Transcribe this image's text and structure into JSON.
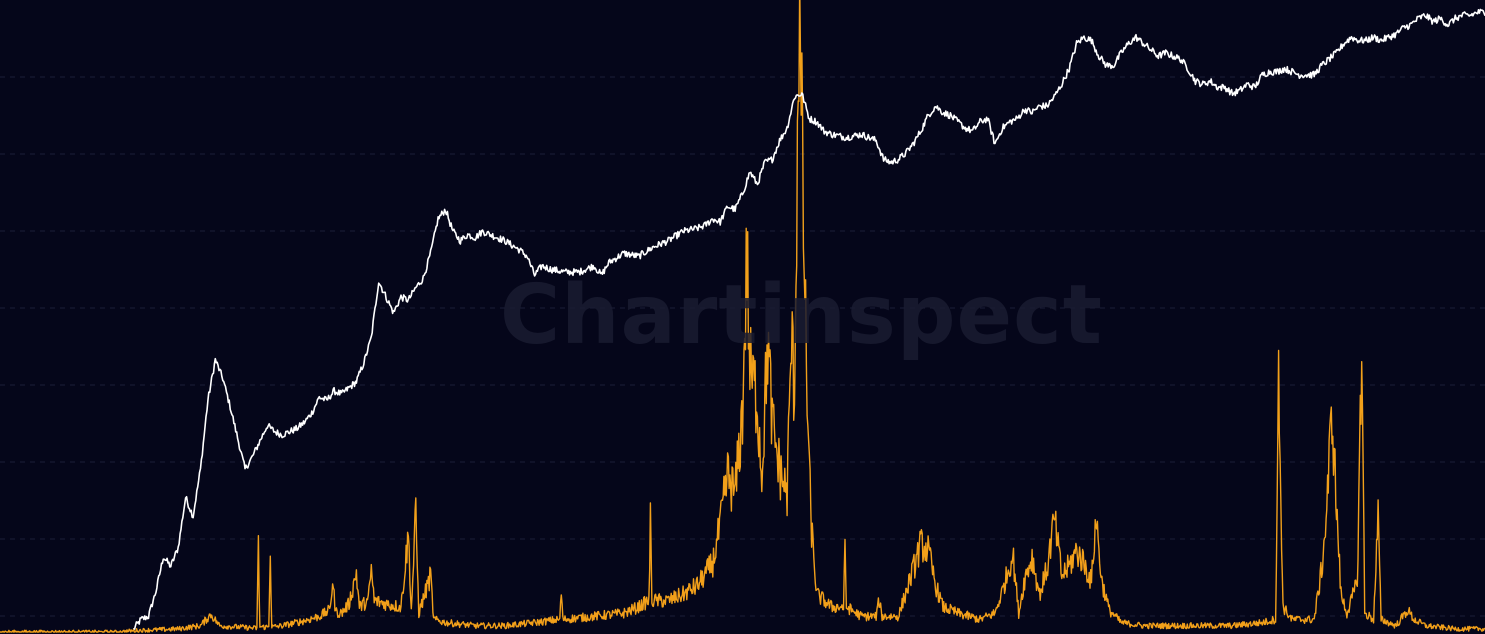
{
  "watermark": "Chartinspect",
  "colors": {
    "background": "#05061a",
    "grid": "#1c1f38",
    "price": "#ffffff",
    "volume": "#f2a01a"
  },
  "chart_data": {
    "type": "line",
    "grid": true,
    "gridlines": "horizontal-dashed",
    "x_range": [
      0,
      100
    ],
    "y_range": [
      0,
      100
    ],
    "series": [
      {
        "key": "price",
        "style": "line",
        "points": [
          [
            9.0,
            0.5
          ],
          [
            9.5,
            2.0
          ],
          [
            10.0,
            2.5
          ],
          [
            10.5,
            6.5
          ],
          [
            11.0,
            12.0
          ],
          [
            11.5,
            10.5
          ],
          [
            12.0,
            13.5
          ],
          [
            12.5,
            21.5
          ],
          [
            13.0,
            18.5
          ],
          [
            13.5,
            26.0
          ],
          [
            14.0,
            37.0
          ],
          [
            14.5,
            43.5
          ],
          [
            15.0,
            40.5
          ],
          [
            15.5,
            36.0
          ],
          [
            16.0,
            31.0
          ],
          [
            16.5,
            26.0
          ],
          [
            17.0,
            28.0
          ],
          [
            17.5,
            30.5
          ],
          [
            18.0,
            33.0
          ],
          [
            18.5,
            32.0
          ],
          [
            19.0,
            31.5
          ],
          [
            19.5,
            32.0
          ],
          [
            20.0,
            32.5
          ],
          [
            20.5,
            33.5
          ],
          [
            21.0,
            35.0
          ],
          [
            21.5,
            37.5
          ],
          [
            22.0,
            37.0
          ],
          [
            22.5,
            38.5
          ],
          [
            23.0,
            38.0
          ],
          [
            23.5,
            39.0
          ],
          [
            24.0,
            40.0
          ],
          [
            24.5,
            43.0
          ],
          [
            25.0,
            47.0
          ],
          [
            25.5,
            56.0
          ],
          [
            26.0,
            53.5
          ],
          [
            26.5,
            51.0
          ],
          [
            27.0,
            53.5
          ],
          [
            27.5,
            53.0
          ],
          [
            28.0,
            55.0
          ],
          [
            28.5,
            56.5
          ],
          [
            29.0,
            60.5
          ],
          [
            29.5,
            66.0
          ],
          [
            30.0,
            67.5
          ],
          [
            30.5,
            64.0
          ],
          [
            31.0,
            62.5
          ],
          [
            31.5,
            63.5
          ],
          [
            32.0,
            63.0
          ],
          [
            32.5,
            64.0
          ],
          [
            33.0,
            63.5
          ],
          [
            34.0,
            62.5
          ],
          [
            35.0,
            61.0
          ],
          [
            35.5,
            60.0
          ],
          [
            36.0,
            57.0
          ],
          [
            36.5,
            58.5
          ],
          [
            37.0,
            58.0
          ],
          [
            38.0,
            57.5
          ],
          [
            39.0,
            57.5
          ],
          [
            40.0,
            58.5
          ],
          [
            40.5,
            57.0
          ],
          [
            41.0,
            59.0
          ],
          [
            42.0,
            60.5
          ],
          [
            43.0,
            60.0
          ],
          [
            44.0,
            61.5
          ],
          [
            45.0,
            62.5
          ],
          [
            46.0,
            64.0
          ],
          [
            47.0,
            64.5
          ],
          [
            47.5,
            65.0
          ],
          [
            48.0,
            66.0
          ],
          [
            48.5,
            65.5
          ],
          [
            49.0,
            68.0
          ],
          [
            49.5,
            67.5
          ],
          [
            50.0,
            70.0
          ],
          [
            50.5,
            73.5
          ],
          [
            51.0,
            71.5
          ],
          [
            51.5,
            75.0
          ],
          [
            52.0,
            75.5
          ],
          [
            52.5,
            78.5
          ],
          [
            53.0,
            80.5
          ],
          [
            53.5,
            85.5
          ],
          [
            54.0,
            86.0
          ],
          [
            54.5,
            82.0
          ],
          [
            55.0,
            81.5
          ],
          [
            55.5,
            80.0
          ],
          [
            56.0,
            79.5
          ],
          [
            57.0,
            79.0
          ],
          [
            58.0,
            79.5
          ],
          [
            59.0,
            78.5
          ],
          [
            59.5,
            75.5
          ],
          [
            60.0,
            75.0
          ],
          [
            60.5,
            75.5
          ],
          [
            61.0,
            76.5
          ],
          [
            61.5,
            78.0
          ],
          [
            62.0,
            80.0
          ],
          [
            62.5,
            82.5
          ],
          [
            63.0,
            84.0
          ],
          [
            63.5,
            83.0
          ],
          [
            64.0,
            82.5
          ],
          [
            64.5,
            81.5
          ],
          [
            65.0,
            80.5
          ],
          [
            65.5,
            80.0
          ],
          [
            66.0,
            81.5
          ],
          [
            66.5,
            82.0
          ],
          [
            67.0,
            78.0
          ],
          [
            67.5,
            80.5
          ],
          [
            68.0,
            81.5
          ],
          [
            68.5,
            82.0
          ],
          [
            69.0,
            83.5
          ],
          [
            69.5,
            83.0
          ],
          [
            70.0,
            84.0
          ],
          [
            70.5,
            84.0
          ],
          [
            71.0,
            85.5
          ],
          [
            71.5,
            87.5
          ],
          [
            72.0,
            90.0
          ],
          [
            72.5,
            94.0
          ],
          [
            73.0,
            95.0
          ],
          [
            73.5,
            94.5
          ],
          [
            74.0,
            92.0
          ],
          [
            74.5,
            90.5
          ],
          [
            75.0,
            90.5
          ],
          [
            75.5,
            92.5
          ],
          [
            76.0,
            94.0
          ],
          [
            76.5,
            95.0
          ],
          [
            77.0,
            94.0
          ],
          [
            77.5,
            93.0
          ],
          [
            78.0,
            92.0
          ],
          [
            78.5,
            92.5
          ],
          [
            79.0,
            92.0
          ],
          [
            79.5,
            91.5
          ],
          [
            80.0,
            90.0
          ],
          [
            80.5,
            88.0
          ],
          [
            81.0,
            87.5
          ],
          [
            81.5,
            88.0
          ],
          [
            82.0,
            87.0
          ],
          [
            82.5,
            87.0
          ],
          [
            83.0,
            86.0
          ],
          [
            83.5,
            86.5
          ],
          [
            84.0,
            87.5
          ],
          [
            84.5,
            87.0
          ],
          [
            85.0,
            89.0
          ],
          [
            85.5,
            89.5
          ],
          [
            86.0,
            89.5
          ],
          [
            86.5,
            90.0
          ],
          [
            87.0,
            89.5
          ],
          [
            87.5,
            89.0
          ],
          [
            88.0,
            89.0
          ],
          [
            88.5,
            89.0
          ],
          [
            89.0,
            90.5
          ],
          [
            89.5,
            91.5
          ],
          [
            90.0,
            92.5
          ],
          [
            90.5,
            94.0
          ],
          [
            91.0,
            95.0
          ],
          [
            91.5,
            94.5
          ],
          [
            92.0,
            94.5
          ],
          [
            92.5,
            95.0
          ],
          [
            93.0,
            94.5
          ],
          [
            93.5,
            95.0
          ],
          [
            94.0,
            95.5
          ],
          [
            94.5,
            96.5
          ],
          [
            95.0,
            97.0
          ],
          [
            95.5,
            98.0
          ],
          [
            96.0,
            98.5
          ],
          [
            96.5,
            97.5
          ],
          [
            97.0,
            98.0
          ],
          [
            97.5,
            97.0
          ],
          [
            98.0,
            98.0
          ],
          [
            98.5,
            98.5
          ],
          [
            99.0,
            98.5
          ],
          [
            99.5,
            99.0
          ],
          [
            100.0,
            99.0
          ]
        ]
      },
      {
        "key": "volume",
        "style": "noisy-line",
        "baseline_noise": 0.6,
        "points": [
          [
            0.0,
            0.0
          ],
          [
            8.0,
            0.0
          ],
          [
            9.0,
            0.2
          ],
          [
            12.0,
            0.5
          ],
          [
            13.5,
            1.0
          ],
          [
            14.2,
            2.8
          ],
          [
            14.8,
            1.0
          ],
          [
            16.0,
            0.8
          ],
          [
            17.3,
            0.6
          ],
          [
            17.4,
            13.5
          ],
          [
            17.5,
            0.8
          ],
          [
            18.1,
            0.8
          ],
          [
            18.2,
            13.5
          ],
          [
            18.3,
            0.8
          ],
          [
            19.0,
            1.0
          ],
          [
            20.5,
            1.8
          ],
          [
            21.5,
            2.5
          ],
          [
            22.2,
            3.5
          ],
          [
            22.4,
            8.0
          ],
          [
            22.6,
            3.2
          ],
          [
            23.0,
            3.0
          ],
          [
            23.5,
            4.5
          ],
          [
            24.0,
            9.5
          ],
          [
            24.2,
            4.0
          ],
          [
            24.8,
            5.0
          ],
          [
            25.0,
            10.0
          ],
          [
            25.2,
            5.0
          ],
          [
            26.0,
            4.5
          ],
          [
            27.0,
            4.0
          ],
          [
            27.5,
            15.5
          ],
          [
            27.7,
            3.5
          ],
          [
            28.0,
            19.0
          ],
          [
            28.2,
            3.0
          ],
          [
            29.0,
            9.0
          ],
          [
            29.2,
            2.0
          ],
          [
            30.0,
            1.5
          ],
          [
            32.0,
            1.0
          ],
          [
            34.0,
            1.0
          ],
          [
            36.0,
            1.5
          ],
          [
            37.7,
            2.0
          ],
          [
            37.8,
            6.5
          ],
          [
            37.9,
            2.0
          ],
          [
            40.0,
            2.5
          ],
          [
            42.0,
            3.0
          ],
          [
            43.0,
            4.0
          ],
          [
            43.7,
            5.0
          ],
          [
            43.8,
            17.5
          ],
          [
            43.9,
            5.0
          ],
          [
            45.0,
            5.0
          ],
          [
            46.0,
            6.0
          ],
          [
            47.0,
            7.5
          ],
          [
            48.0,
            11.0
          ],
          [
            48.5,
            17.0
          ],
          [
            49.0,
            25.0
          ],
          [
            49.5,
            22.0
          ],
          [
            50.0,
            35.0
          ],
          [
            50.3,
            60.5
          ],
          [
            50.5,
            42.0
          ],
          [
            51.0,
            37.0
          ],
          [
            51.3,
            25.0
          ],
          [
            51.7,
            46.5
          ],
          [
            52.0,
            33.0
          ],
          [
            52.5,
            26.0
          ],
          [
            53.0,
            22.0
          ],
          [
            53.3,
            47.0
          ],
          [
            53.5,
            38.0
          ],
          [
            53.8,
            98.5
          ],
          [
            54.0,
            79.0
          ],
          [
            54.3,
            42.0
          ],
          [
            54.6,
            18.0
          ],
          [
            55.0,
            6.0
          ],
          [
            56.0,
            4.0
          ],
          [
            56.8,
            4.0
          ],
          [
            56.9,
            12.5
          ],
          [
            57.0,
            4.0
          ],
          [
            58.0,
            2.5
          ],
          [
            59.0,
            2.5
          ],
          [
            59.2,
            5.0
          ],
          [
            59.4,
            2.5
          ],
          [
            60.5,
            2.5
          ],
          [
            61.5,
            10.0
          ],
          [
            62.0,
            14.0
          ],
          [
            62.5,
            13.0
          ],
          [
            63.0,
            7.5
          ],
          [
            63.5,
            4.0
          ],
          [
            64.5,
            3.0
          ],
          [
            66.0,
            2.0
          ],
          [
            67.0,
            3.0
          ],
          [
            67.5,
            6.5
          ],
          [
            68.2,
            12.5
          ],
          [
            68.6,
            3.0
          ],
          [
            69.0,
            8.5
          ],
          [
            69.5,
            12.0
          ],
          [
            70.0,
            6.0
          ],
          [
            70.5,
            10.0
          ],
          [
            71.0,
            18.0
          ],
          [
            71.5,
            9.0
          ],
          [
            72.0,
            10.5
          ],
          [
            72.5,
            13.0
          ],
          [
            73.0,
            11.0
          ],
          [
            73.5,
            8.0
          ],
          [
            73.8,
            18.5
          ],
          [
            74.2,
            8.0
          ],
          [
            74.7,
            3.5
          ],
          [
            75.5,
            1.5
          ],
          [
            77.0,
            1.0
          ],
          [
            80.0,
            1.0
          ],
          [
            83.0,
            1.0
          ],
          [
            85.0,
            1.5
          ],
          [
            85.9,
            2.0
          ],
          [
            86.1,
            39.5
          ],
          [
            86.4,
            4.0
          ],
          [
            87.0,
            2.0
          ],
          [
            88.5,
            2.0
          ],
          [
            89.0,
            10.0
          ],
          [
            89.3,
            18.0
          ],
          [
            89.7,
            35.5
          ],
          [
            90.0,
            20.0
          ],
          [
            90.3,
            6.0
          ],
          [
            90.7,
            3.0
          ],
          [
            91.0,
            5.0
          ],
          [
            91.4,
            8.0
          ],
          [
            91.7,
            46.0
          ],
          [
            91.9,
            3.0
          ],
          [
            92.5,
            2.0
          ],
          [
            92.8,
            18.5
          ],
          [
            93.0,
            2.0
          ],
          [
            94.0,
            1.0
          ],
          [
            94.8,
            3.5
          ],
          [
            95.2,
            2.0
          ],
          [
            96.0,
            1.0
          ],
          [
            98.0,
            0.5
          ],
          [
            100.0,
            0.5
          ]
        ]
      }
    ]
  }
}
